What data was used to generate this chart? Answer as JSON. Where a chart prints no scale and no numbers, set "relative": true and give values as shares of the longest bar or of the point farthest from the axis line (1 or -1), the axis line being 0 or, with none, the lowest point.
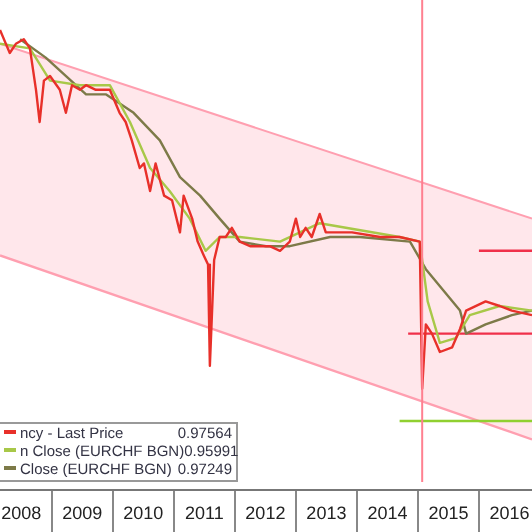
{
  "chart_data": {
    "type": "line",
    "relative": true,
    "marker": "none",
    "legend": "bottom left",
    "xlim": [
      2008.15,
      2016.87
    ],
    "xticks": [
      {
        "value": 2008.5,
        "label": "2008"
      },
      {
        "value": 2009.5,
        "label": "2009"
      },
      {
        "value": 2010.5,
        "label": "2010"
      },
      {
        "value": 2011.5,
        "label": "2011"
      },
      {
        "value": 2012.5,
        "label": "2012"
      },
      {
        "value": 2013.5,
        "label": "2013"
      },
      {
        "value": 2014.5,
        "label": "2014"
      },
      {
        "value": 2015.5,
        "label": "2015"
      },
      {
        "value": 2016.5,
        "label": "2016"
      }
    ],
    "series": [
      {
        "type": "line",
        "color": "#ff9fb0",
        "x": [
          2008.15,
          2016.87
        ],
        "values": [
          0.51,
          0.11
        ]
      },
      {
        "type": "area",
        "color": "#ff9fb0",
        "x": [
          2008.15,
          2016.87
        ],
        "values": [
          0.97,
          0.59
        ]
      },
      {
        "name": "ncy - Last Price",
        "color": "#e8302a",
        "x": [
          2008.15,
          2008.31,
          2008.41,
          2008.54,
          2008.64,
          2008.74,
          2008.8,
          2008.87,
          2008.97,
          2009.13,
          2009.23,
          2009.33,
          2009.46,
          2009.56,
          2009.72,
          2009.95,
          2010.11,
          2010.21,
          2010.31,
          2010.44,
          2010.51,
          2010.61,
          2010.7,
          2010.84,
          2010.97,
          2011.1,
          2011.16,
          2011.3,
          2011.39,
          2011.49,
          2011.56,
          2011.59,
          2011.66,
          2011.75,
          2011.85,
          2011.95,
          2012.08,
          2012.25,
          2012.41,
          2012.57,
          2012.74,
          2012.9,
          2013.0,
          2013.07,
          2013.16,
          2013.26,
          2013.39,
          2013.49,
          2013.59,
          2013.92,
          2014.38,
          2014.7,
          2015.03,
          2015.07,
          2015.13,
          2015.23,
          2015.36,
          2015.56,
          2015.69,
          2015.79,
          2016.11,
          2016.34,
          2016.54,
          2016.87
        ],
        "values": [
          1,
          0.95,
          0.97,
          0.98,
          0.96,
          0.87,
          0.8,
          0.89,
          0.9,
          0.87,
          0.82,
          0.88,
          0.87,
          0.88,
          0.87,
          0.87,
          0.82,
          0.8,
          0.76,
          0.7,
          0.71,
          0.65,
          0.71,
          0.64,
          0.63,
          0.56,
          0.64,
          0.59,
          0.54,
          0.51,
          0.49,
          0.27,
          0.5,
          0.55,
          0.55,
          0.57,
          0.54,
          0.53,
          0.53,
          0.53,
          0.52,
          0.54,
          0.59,
          0.55,
          0.57,
          0.55,
          0.6,
          0.56,
          0.56,
          0.56,
          0.55,
          0.55,
          0.54,
          0.22,
          0.36,
          0.34,
          0.3,
          0.31,
          0.35,
          0.39,
          0.41,
          0.4,
          0.39,
          0.38
        ]
      },
      {
        "name": "n Close (EURCHF BGN)",
        "color": "#a8c848",
        "x": [
          2008.15,
          2008.64,
          2008.97,
          2009.46,
          2009.95,
          2010.28,
          2010.61,
          2010.93,
          2011.26,
          2011.52,
          2011.75,
          2012.08,
          2012.74,
          2013.39,
          2014.7,
          2015.03,
          2015.16,
          2015.36,
          2015.62,
          2015.85,
          2016.34,
          2016.87
        ],
        "values": [
          0.97,
          0.96,
          0.89,
          0.88,
          0.88,
          0.8,
          0.7,
          0.65,
          0.59,
          0.52,
          0.55,
          0.55,
          0.54,
          0.58,
          0.55,
          0.54,
          0.41,
          0.32,
          0.33,
          0.38,
          0.4,
          0.39
        ]
      },
      {
        "name": "Close (EURCHF BGN)",
        "color": "#7d7a48",
        "x": [
          2008.48,
          2008.9,
          2009.56,
          2009.89,
          2010.34,
          2010.77,
          2011.1,
          2011.43,
          2011.75,
          2012.08,
          2012.51,
          2012.9,
          2013.56,
          2014.05,
          2014.87,
          2015.13,
          2015.69,
          2015.79,
          2016.11,
          2016.54,
          2016.87
        ],
        "values": [
          0.98,
          0.94,
          0.86,
          0.86,
          0.82,
          0.76,
          0.68,
          0.64,
          0.59,
          0.54,
          0.53,
          0.53,
          0.55,
          0.55,
          0.54,
          0.48,
          0.39,
          0.34,
          0.36,
          0.38,
          0.39
        ]
      },
      {
        "color": "#f0304a",
        "x": [
          2016.0,
          2016.87
        ],
        "values": [
          0.52,
          0.52
        ]
      },
      {
        "color": "#f0304a",
        "x": [
          2014.84,
          2016.87
        ],
        "values": [
          0.34,
          0.34
        ]
      },
      {
        "color": "#90d030",
        "x": [
          2014.7,
          2016.87
        ],
        "values": [
          0.15,
          0.15
        ]
      }
    ],
    "ref_lines": [
      {
        "axis": "x",
        "value": 2015.07,
        "color": "#ff8090"
      }
    ],
    "annotations": [
      "0.97564",
      "0.95991",
      "0.97249"
    ]
  }
}
